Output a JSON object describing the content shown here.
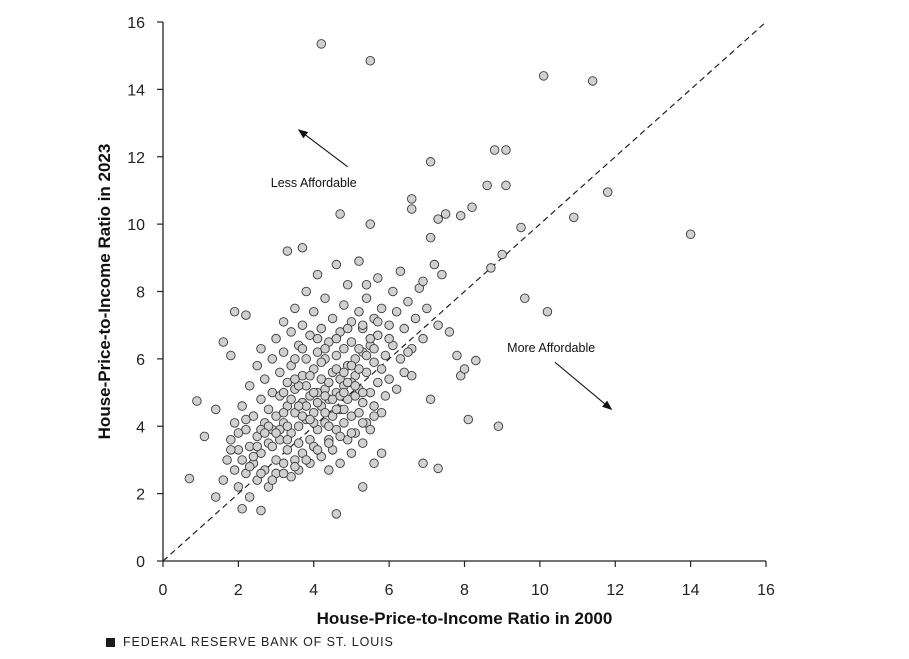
{
  "footer": {
    "source": "FEDERAL RESERVE BANK OF ST. LOUIS"
  },
  "chart_data": {
    "type": "scatter",
    "xlabel": "House-Price-to-Income  Ratio in 2000",
    "ylabel": "House-Price-to-Income  Ratio in 2023",
    "xlim": [
      0,
      16
    ],
    "ylim": [
      0,
      16
    ],
    "xticks": [
      0,
      2,
      4,
      6,
      8,
      10,
      12,
      14,
      16
    ],
    "yticks": [
      0,
      2,
      4,
      6,
      8,
      10,
      12,
      14,
      16
    ],
    "grid": false,
    "reference_line": {
      "style": "dashed",
      "from": [
        0,
        0
      ],
      "to": [
        16,
        16
      ]
    },
    "annotations": [
      {
        "text": "Less Affordable",
        "x": 4.0,
        "y": 11.1,
        "arrow_from": [
          4.9,
          11.7
        ],
        "arrow_to": [
          3.6,
          12.8
        ]
      },
      {
        "text": "More Affordable",
        "x": 10.3,
        "y": 6.2,
        "arrow_from": [
          10.4,
          5.9
        ],
        "arrow_to": [
          11.9,
          4.5
        ]
      }
    ],
    "outliers": [
      [
        4.2,
        15.35
      ],
      [
        5.5,
        14.85
      ],
      [
        10.1,
        14.4
      ],
      [
        11.4,
        14.25
      ],
      [
        8.8,
        12.2
      ],
      [
        9.1,
        12.2
      ],
      [
        7.1,
        11.85
      ],
      [
        8.6,
        11.15
      ],
      [
        9.1,
        11.15
      ],
      [
        11.8,
        10.95
      ],
      [
        6.6,
        10.75
      ],
      [
        8.2,
        10.5
      ],
      [
        6.6,
        10.45
      ],
      [
        4.7,
        10.3
      ],
      [
        7.9,
        10.25
      ],
      [
        7.5,
        10.3
      ],
      [
        7.3,
        10.15
      ],
      [
        10.9,
        10.2
      ],
      [
        5.5,
        10.0
      ],
      [
        9.5,
        9.9
      ],
      [
        14.0,
        9.7
      ],
      [
        7.1,
        9.6
      ],
      [
        9.0,
        9.1
      ],
      [
        8.7,
        8.7
      ],
      [
        9.6,
        7.8
      ],
      [
        10.2,
        7.4
      ],
      [
        8.3,
        5.95
      ],
      [
        7.6,
        6.8
      ],
      [
        8.1,
        4.2
      ],
      [
        8.9,
        4.0
      ],
      [
        7.3,
        2.75
      ],
      [
        6.9,
        2.9
      ],
      [
        4.6,
        1.4
      ],
      [
        3.3,
        9.2
      ],
      [
        3.7,
        9.3
      ],
      [
        1.9,
        7.4
      ],
      [
        2.2,
        7.3
      ],
      [
        0.7,
        2.45
      ],
      [
        0.9,
        4.75
      ],
      [
        1.1,
        3.7
      ],
      [
        1.4,
        1.9
      ],
      [
        1.4,
        4.5
      ],
      [
        1.6,
        6.5
      ],
      [
        1.8,
        6.1
      ],
      [
        2.1,
        1.55
      ],
      [
        2.6,
        1.5
      ],
      [
        5.3,
        2.2
      ],
      [
        5.6,
        2.9
      ],
      [
        5.8,
        3.2
      ],
      [
        6.6,
        5.5
      ],
      [
        7.1,
        4.8
      ],
      [
        7.8,
        6.1
      ],
      [
        7.9,
        5.5
      ],
      [
        8.0,
        5.7
      ],
      [
        6.9,
        8.3
      ],
      [
        7.4,
        8.5
      ],
      [
        5.4,
        8.2
      ]
    ],
    "cluster": [
      [
        1.6,
        2.4
      ],
      [
        1.7,
        3.0
      ],
      [
        1.8,
        3.6
      ],
      [
        1.9,
        2.7
      ],
      [
        1.9,
        4.1
      ],
      [
        2.0,
        3.3
      ],
      [
        2.0,
        2.2
      ],
      [
        2.1,
        4.6
      ],
      [
        2.1,
        3.0
      ],
      [
        2.2,
        3.9
      ],
      [
        2.2,
        2.6
      ],
      [
        2.3,
        5.2
      ],
      [
        2.3,
        3.4
      ],
      [
        2.3,
        1.9
      ],
      [
        2.4,
        4.3
      ],
      [
        2.4,
        2.9
      ],
      [
        2.5,
        3.7
      ],
      [
        2.5,
        5.8
      ],
      [
        2.5,
        2.4
      ],
      [
        2.6,
        4.8
      ],
      [
        2.6,
        3.2
      ],
      [
        2.6,
        6.3
      ],
      [
        2.7,
        4.1
      ],
      [
        2.7,
        2.7
      ],
      [
        2.7,
        5.4
      ],
      [
        2.8,
        3.5
      ],
      [
        2.8,
        4.5
      ],
      [
        2.8,
        2.2
      ],
      [
        2.9,
        6.0
      ],
      [
        2.9,
        3.9
      ],
      [
        2.9,
        5.0
      ],
      [
        3.0,
        3.0
      ],
      [
        3.0,
        4.3
      ],
      [
        3.0,
        6.6
      ],
      [
        3.0,
        2.6
      ],
      [
        3.1,
        5.6
      ],
      [
        3.1,
        3.6
      ],
      [
        3.1,
        4.9
      ],
      [
        3.2,
        2.9
      ],
      [
        3.2,
        6.2
      ],
      [
        3.2,
        4.1
      ],
      [
        3.2,
        7.1
      ],
      [
        3.3,
        3.3
      ],
      [
        3.3,
        5.3
      ],
      [
        3.3,
        4.6
      ],
      [
        3.4,
        2.5
      ],
      [
        3.4,
        6.8
      ],
      [
        3.4,
        3.8
      ],
      [
        3.4,
        5.8
      ],
      [
        3.5,
        4.4
      ],
      [
        3.5,
        3.0
      ],
      [
        3.5,
        7.5
      ],
      [
        3.5,
        5.1
      ],
      [
        3.6,
        3.5
      ],
      [
        3.6,
        6.4
      ],
      [
        3.6,
        4.0
      ],
      [
        3.6,
        2.7
      ],
      [
        3.7,
        5.5
      ],
      [
        3.7,
        4.7
      ],
      [
        3.7,
        7.0
      ],
      [
        3.7,
        3.2
      ],
      [
        3.8,
        6.0
      ],
      [
        3.8,
        4.2
      ],
      [
        3.8,
        8.0
      ],
      [
        3.8,
        5.2
      ],
      [
        3.9,
        3.6
      ],
      [
        3.9,
        6.7
      ],
      [
        3.9,
        4.9
      ],
      [
        3.9,
        2.9
      ],
      [
        4.0,
        5.7
      ],
      [
        4.0,
        4.4
      ],
      [
        4.0,
        7.4
      ],
      [
        4.0,
        3.4
      ],
      [
        4.1,
        6.2
      ],
      [
        4.1,
        5.0
      ],
      [
        4.1,
        3.9
      ],
      [
        4.1,
        8.5
      ],
      [
        4.2,
        5.4
      ],
      [
        4.2,
        4.6
      ],
      [
        4.2,
        6.9
      ],
      [
        4.2,
        3.1
      ],
      [
        4.3,
        6.0
      ],
      [
        4.3,
        4.1
      ],
      [
        4.3,
        7.8
      ],
      [
        4.3,
        5.1
      ],
      [
        4.4,
        3.6
      ],
      [
        4.4,
        6.5
      ],
      [
        4.4,
        4.8
      ],
      [
        4.4,
        2.7
      ],
      [
        4.5,
        5.6
      ],
      [
        4.5,
        4.3
      ],
      [
        4.5,
        7.2
      ],
      [
        4.5,
        3.3
      ],
      [
        4.6,
        6.1
      ],
      [
        4.6,
        5.0
      ],
      [
        4.6,
        8.8
      ],
      [
        4.6,
        3.9
      ],
      [
        4.7,
        5.4
      ],
      [
        4.7,
        4.5
      ],
      [
        4.7,
        6.8
      ],
      [
        4.7,
        2.9
      ],
      [
        4.8,
        6.3
      ],
      [
        4.8,
        4.1
      ],
      [
        4.8,
        7.6
      ],
      [
        4.8,
        5.2
      ],
      [
        4.9,
        3.6
      ],
      [
        4.9,
        5.8
      ],
      [
        4.9,
        4.8
      ],
      [
        4.9,
        8.2
      ],
      [
        5.0,
        6.5
      ],
      [
        5.0,
        4.3
      ],
      [
        5.0,
        7.1
      ],
      [
        5.0,
        3.2
      ],
      [
        5.1,
        5.5
      ],
      [
        5.1,
        4.9
      ],
      [
        5.1,
        6.0
      ],
      [
        5.1,
        3.8
      ],
      [
        5.2,
        7.4
      ],
      [
        5.2,
        5.1
      ],
      [
        5.2,
        4.4
      ],
      [
        5.2,
        8.9
      ],
      [
        5.3,
        6.2
      ],
      [
        5.3,
        4.7
      ],
      [
        5.3,
        3.5
      ],
      [
        5.3,
        6.9
      ],
      [
        5.4,
        5.6
      ],
      [
        5.4,
        4.1
      ],
      [
        5.4,
        7.8
      ],
      [
        5.5,
        5.0
      ],
      [
        5.5,
        6.4
      ],
      [
        5.5,
        3.9
      ],
      [
        5.6,
        7.2
      ],
      [
        5.6,
        4.6
      ],
      [
        5.6,
        5.9
      ],
      [
        5.7,
        8.4
      ],
      [
        5.7,
        5.3
      ],
      [
        5.7,
        6.7
      ],
      [
        5.8,
        4.4
      ],
      [
        5.8,
        7.5
      ],
      [
        5.8,
        5.7
      ],
      [
        5.9,
        6.1
      ],
      [
        5.9,
        4.9
      ],
      [
        6.0,
        7.0
      ],
      [
        6.0,
        5.4
      ],
      [
        6.1,
        8.0
      ],
      [
        6.1,
        6.4
      ],
      [
        6.2,
        5.1
      ],
      [
        6.2,
        7.4
      ],
      [
        6.3,
        6.0
      ],
      [
        6.3,
        8.6
      ],
      [
        6.4,
        6.9
      ],
      [
        6.4,
        5.6
      ],
      [
        6.5,
        7.7
      ],
      [
        6.6,
        6.3
      ],
      [
        6.7,
        7.2
      ],
      [
        6.8,
        8.1
      ],
      [
        6.9,
        6.6
      ],
      [
        7.0,
        7.5
      ],
      [
        7.2,
        8.8
      ],
      [
        7.3,
        7.0
      ],
      [
        2.4,
        3.1
      ],
      [
        2.6,
        3.9
      ],
      [
        2.9,
        3.4
      ],
      [
        3.1,
        3.9
      ],
      [
        3.3,
        4.0
      ],
      [
        3.4,
        4.8
      ],
      [
        3.6,
        5.2
      ],
      [
        3.8,
        4.6
      ],
      [
        4.0,
        5.0
      ],
      [
        4.2,
        5.9
      ],
      [
        4.4,
        5.3
      ],
      [
        4.6,
        5.7
      ],
      [
        4.8,
        5.6
      ],
      [
        5.0,
        5.3
      ],
      [
        5.2,
        5.7
      ],
      [
        5.4,
        6.1
      ],
      [
        5.6,
        6.3
      ],
      [
        3.2,
        5.0
      ],
      [
        3.5,
        5.4
      ],
      [
        3.9,
        5.5
      ],
      [
        4.1,
        4.7
      ],
      [
        4.3,
        4.9
      ],
      [
        4.5,
        4.8
      ],
      [
        4.7,
        4.9
      ],
      [
        4.9,
        5.3
      ],
      [
        5.1,
        5.2
      ],
      [
        3.0,
        3.8
      ],
      [
        3.3,
        3.6
      ],
      [
        3.7,
        4.3
      ],
      [
        4.4,
        4.0
      ],
      [
        2.8,
        4.0
      ],
      [
        3.2,
        4.4
      ],
      [
        3.6,
        4.6
      ],
      [
        4.0,
        4.1
      ],
      [
        4.8,
        4.5
      ],
      [
        5.3,
        5.0
      ],
      [
        2.5,
        3.4
      ],
      [
        2.7,
        3.8
      ],
      [
        3.9,
        4.2
      ],
      [
        4.3,
        4.4
      ],
      [
        4.6,
        4.5
      ],
      [
        4.8,
        5.0
      ],
      [
        5.0,
        5.8
      ],
      [
        5.2,
        6.3
      ],
      [
        5.5,
        6.6
      ],
      [
        3.5,
        6.0
      ],
      [
        3.7,
        6.3
      ],
      [
        4.1,
        6.6
      ],
      [
        4.3,
        6.3
      ],
      [
        4.6,
        6.6
      ],
      [
        4.9,
        6.9
      ],
      [
        5.3,
        7.0
      ],
      [
        5.7,
        7.1
      ],
      [
        6.0,
        6.6
      ],
      [
        6.5,
        6.2
      ],
      [
        2.2,
        4.2
      ],
      [
        2.0,
        3.8
      ],
      [
        1.8,
        3.3
      ],
      [
        2.3,
        2.8
      ],
      [
        2.6,
        2.6
      ],
      [
        2.9,
        2.4
      ],
      [
        3.2,
        2.6
      ],
      [
        3.5,
        2.8
      ],
      [
        3.8,
        3.0
      ],
      [
        4.1,
        3.3
      ],
      [
        4.4,
        3.5
      ],
      [
        4.7,
        3.7
      ],
      [
        5.0,
        3.8
      ],
      [
        5.3,
        4.1
      ],
      [
        5.6,
        4.3
      ]
    ]
  }
}
